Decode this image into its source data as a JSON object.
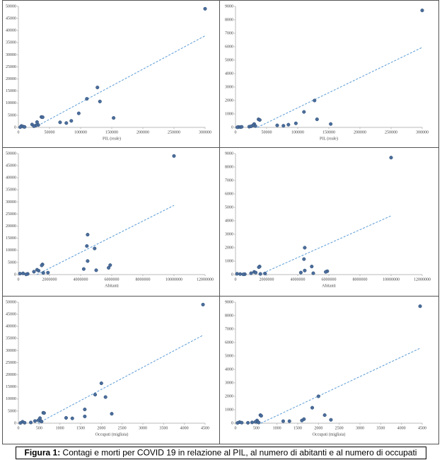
{
  "chart_data": [
    {
      "type": "scatter",
      "xlabel": "PIL (reale)",
      "xlim": [
        0,
        300000
      ],
      "ylim": [
        0,
        50000
      ],
      "xticks": [
        0,
        50000,
        100000,
        150000,
        200000,
        250000,
        300000
      ],
      "yticks": [
        0,
        5000,
        10000,
        15000,
        20000,
        25000,
        30000,
        35000,
        40000,
        45000,
        50000
      ],
      "color": "#4a6d9c",
      "trendline": true,
      "trend_color": "#5b9bd5",
      "x": [
        300000,
        127000,
        110000,
        131000,
        97000,
        153000,
        37000,
        39000,
        85000,
        67000,
        77000,
        30000,
        32000,
        28000,
        22000,
        5000,
        8000,
        10000,
        3000,
        25000
      ],
      "values": [
        49000,
        16500,
        11800,
        10700,
        5800,
        3900,
        4300,
        4200,
        2700,
        2100,
        1800,
        2200,
        1000,
        800,
        1200,
        600,
        300,
        200,
        100,
        500
      ]
    },
    {
      "type": "scatter",
      "xlabel": "PIL (reale)",
      "xlim": [
        0,
        300000
      ],
      "ylim": [
        0,
        9000
      ],
      "xticks": [
        0,
        50000,
        100000,
        150000,
        200000,
        250000,
        300000
      ],
      "yticks": [
        0,
        1000,
        2000,
        3000,
        4000,
        5000,
        6000,
        7000,
        8000,
        9000
      ],
      "color": "#4a6d9c",
      "trendline": true,
      "trend_color": "#5b9bd5",
      "x": [
        300000,
        127000,
        110000,
        131000,
        97000,
        153000,
        37000,
        39000,
        85000,
        67000,
        77000,
        30000,
        32000,
        28000,
        22000,
        5000,
        8000,
        10000,
        3000,
        25000
      ],
      "values": [
        8700,
        2000,
        1150,
        600,
        300,
        250,
        600,
        550,
        200,
        150,
        120,
        250,
        100,
        150,
        50,
        30,
        20,
        40,
        10,
        80
      ]
    },
    {
      "type": "scatter",
      "xlabel": "Abitanti",
      "xlim": [
        0,
        12000000
      ],
      "ylim": [
        0,
        50000
      ],
      "xticks": [
        0,
        2000000,
        4000000,
        6000000,
        8000000,
        10000000,
        12000000
      ],
      "yticks": [
        0,
        5000,
        10000,
        15000,
        20000,
        25000,
        30000,
        35000,
        40000,
        45000,
        50000
      ],
      "color": "#4a6d9c",
      "trendline": true,
      "trend_color": "#5b9bd5",
      "x": [
        10000000,
        4450000,
        4400000,
        4900000,
        4450000,
        4200000,
        5900000,
        5800000,
        5000000,
        1550000,
        1500000,
        1200000,
        1300000,
        1000000,
        1900000,
        1600000,
        600000,
        300000,
        100000,
        500000
      ],
      "values": [
        49000,
        16500,
        11800,
        10800,
        5600,
        2300,
        3900,
        2800,
        1800,
        4200,
        3800,
        2000,
        1600,
        1200,
        800,
        700,
        300,
        500,
        400,
        100
      ]
    },
    {
      "type": "scatter",
      "xlabel": "Abitanti",
      "xlim": [
        0,
        12000000
      ],
      "ylim": [
        0,
        9000
      ],
      "xticks": [
        0,
        2000000,
        4000000,
        6000000,
        8000000,
        10000000,
        12000000
      ],
      "yticks": [
        0,
        1000,
        2000,
        3000,
        4000,
        5000,
        6000,
        7000,
        8000,
        9000
      ],
      "color": "#4a6d9c",
      "trendline": true,
      "trend_color": "#5b9bd5",
      "x": [
        10000000,
        4450000,
        4400000,
        4900000,
        4450000,
        4200000,
        5900000,
        5800000,
        5000000,
        1550000,
        1500000,
        1200000,
        1300000,
        1000000,
        1900000,
        1600000,
        600000,
        300000,
        100000,
        500000
      ],
      "values": [
        8700,
        2000,
        1150,
        600,
        300,
        150,
        250,
        200,
        100,
        600,
        550,
        200,
        150,
        100,
        80,
        50,
        30,
        40,
        60,
        20
      ]
    },
    {
      "type": "scatter",
      "xlabel": "Occupati (migliaia)",
      "xlim": [
        0,
        4500
      ],
      "ylim": [
        0,
        50000
      ],
      "xticks": [
        0,
        500,
        1000,
        1500,
        2000,
        2500,
        3000,
        3500,
        4000,
        4500
      ],
      "yticks": [
        0,
        5000,
        10000,
        15000,
        20000,
        25000,
        30000,
        35000,
        40000,
        45000,
        50000
      ],
      "color": "#4a6d9c",
      "trendline": true,
      "trend_color": "#5b9bd5",
      "x": [
        4450,
        2000,
        1850,
        2100,
        1600,
        2250,
        600,
        620,
        1300,
        1600,
        1150,
        520,
        480,
        540,
        560,
        400,
        300,
        100,
        150,
        50
      ],
      "values": [
        49000,
        16500,
        11800,
        10800,
        5700,
        3900,
        4300,
        4200,
        2000,
        2800,
        2200,
        2100,
        1200,
        900,
        700,
        900,
        300,
        600,
        200,
        100
      ]
    },
    {
      "type": "scatter",
      "xlabel": "Occupati (migliaia)",
      "xlim": [
        0,
        4500
      ],
      "ylim": [
        0,
        9000
      ],
      "xticks": [
        0,
        500,
        1000,
        1500,
        2000,
        2500,
        3000,
        3500,
        4000,
        4500
      ],
      "yticks": [
        0,
        1000,
        2000,
        3000,
        4000,
        5000,
        6000,
        7000,
        8000,
        9000
      ],
      "color": "#4a6d9c",
      "trendline": true,
      "trend_color": "#5b9bd5",
      "x": [
        4450,
        2000,
        1850,
        2150,
        1650,
        2300,
        600,
        620,
        1300,
        1600,
        1150,
        520,
        480,
        540,
        560,
        400,
        300,
        100,
        150,
        50
      ],
      "values": [
        8700,
        2000,
        1150,
        600,
        300,
        250,
        600,
        550,
        150,
        200,
        150,
        200,
        100,
        80,
        50,
        60,
        30,
        80,
        40,
        20
      ]
    }
  ],
  "caption": {
    "label": "Figura 1:",
    "text": "Contagi e morti per COVID 19 in relazione al PIL, al numero di abitanti e al numero di occupati"
  }
}
